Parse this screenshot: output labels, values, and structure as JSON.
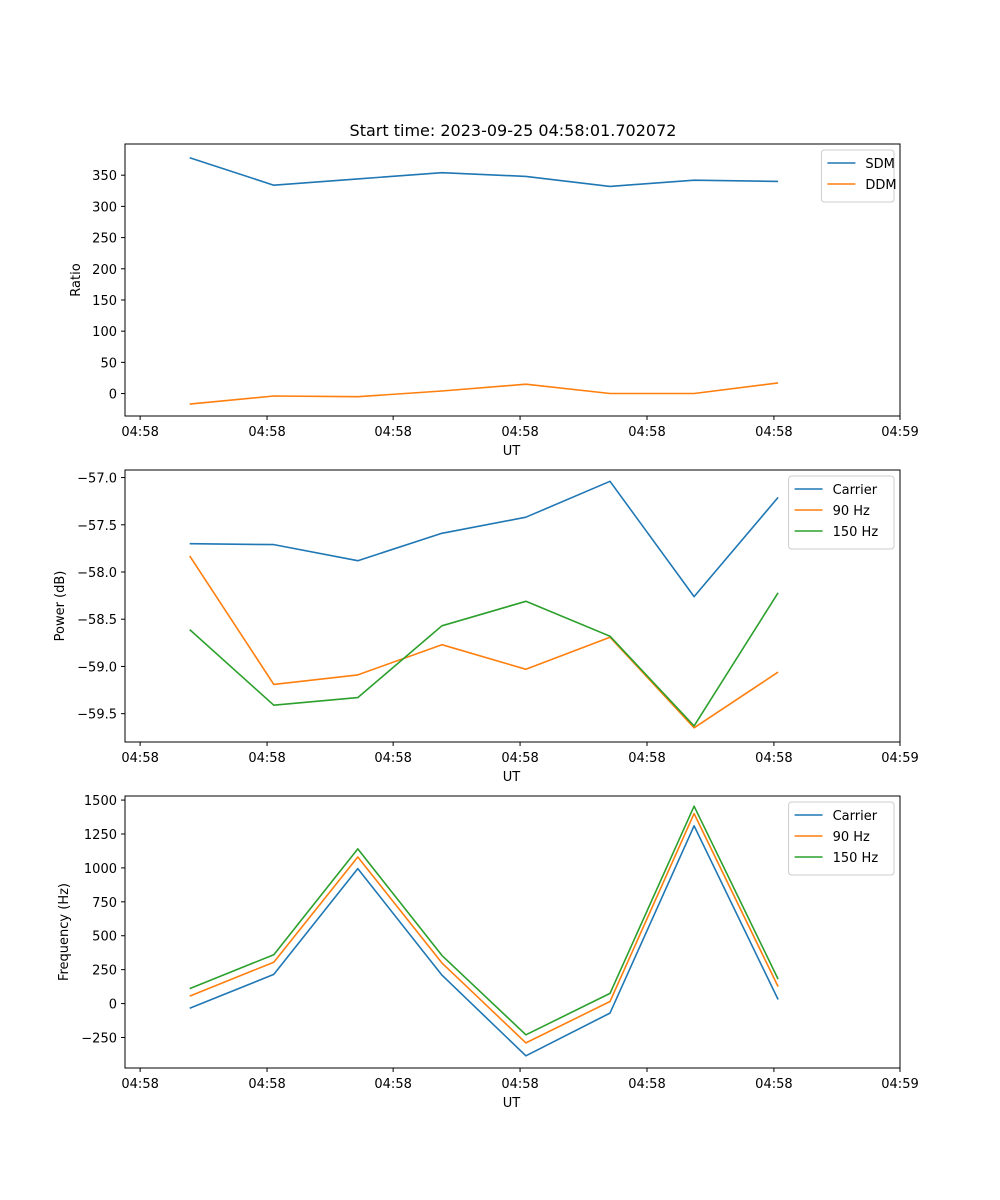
{
  "figure": {
    "title": "Start time: 2023-09-25 04:58:01.702072"
  },
  "colors": {
    "blue": "#1f77b4",
    "orange": "#ff7f0e",
    "green": "#2ca02c"
  },
  "chart_data": [
    {
      "type": "line",
      "title": "Start time: 2023-09-25 04:58:01.702072",
      "xlabel": "UT",
      "ylabel": "Ratio",
      "x": [
        1,
        2,
        3,
        4,
        5,
        6,
        7,
        8
      ],
      "xlim": [
        0.23,
        9.45
      ],
      "x_ticks": [
        0.41,
        1.92,
        3.42,
        4.93,
        6.44,
        7.95,
        9.45
      ],
      "x_tick_labels": [
        "04:58",
        "04:58",
        "04:58",
        "04:58",
        "04:58",
        "04:58",
        "04:59"
      ],
      "ylim": [
        -36,
        400
      ],
      "y_ticks": [
        0,
        50,
        100,
        150,
        200,
        250,
        300,
        350
      ],
      "legend": "top-right",
      "series": [
        {
          "name": "SDM",
          "color": "#1f77b4",
          "values": [
            378,
            334,
            344,
            354,
            348,
            332,
            342,
            340
          ]
        },
        {
          "name": "DDM",
          "color": "#ff7f0e",
          "values": [
            -17,
            -4,
            -5,
            4,
            15,
            0,
            0,
            17
          ]
        }
      ]
    },
    {
      "type": "line",
      "title": "",
      "xlabel": "UT",
      "ylabel": "Power (dB)",
      "x": [
        1,
        2,
        3,
        4,
        5,
        6,
        7,
        8
      ],
      "xlim": [
        0.23,
        9.45
      ],
      "x_ticks": [
        0.41,
        1.92,
        3.42,
        4.93,
        6.44,
        7.95,
        9.45
      ],
      "x_tick_labels": [
        "04:58",
        "04:58",
        "04:58",
        "04:58",
        "04:58",
        "04:58",
        "04:59"
      ],
      "ylim": [
        -59.8,
        -56.92
      ],
      "y_ticks": [
        -59.5,
        -59.0,
        -58.5,
        -58.0,
        -57.5,
        -57.0
      ],
      "y_tick_labels": [
        "−59.5",
        "−59.0",
        "−58.5",
        "−58.0",
        "−57.5",
        "−57.0"
      ],
      "legend": "top-right",
      "series": [
        {
          "name": "Carrier",
          "color": "#1f77b4",
          "values": [
            -57.7,
            -57.71,
            -57.88,
            -57.59,
            -57.42,
            -57.04,
            -58.26,
            -57.21
          ]
        },
        {
          "name": "90 Hz",
          "color": "#ff7f0e",
          "values": [
            -57.83,
            -59.19,
            -59.09,
            -58.77,
            -59.03,
            -58.69,
            -59.65,
            -59.06
          ]
        },
        {
          "name": "150 Hz",
          "color": "#2ca02c",
          "values": [
            -58.61,
            -59.41,
            -59.33,
            -58.57,
            -58.31,
            -58.68,
            -59.63,
            -58.22
          ]
        }
      ]
    },
    {
      "type": "line",
      "title": "",
      "xlabel": "UT",
      "ylabel": "Frequency (Hz)",
      "x": [
        1,
        2,
        3,
        4,
        5,
        6,
        7,
        8
      ],
      "xlim": [
        0.23,
        9.45
      ],
      "x_ticks": [
        0.41,
        1.92,
        3.42,
        4.93,
        6.44,
        7.95,
        9.45
      ],
      "x_tick_labels": [
        "04:58",
        "04:58",
        "04:58",
        "04:58",
        "04:58",
        "04:58",
        "04:59"
      ],
      "ylim": [
        -475,
        1530
      ],
      "y_ticks": [
        -250,
        0,
        250,
        500,
        750,
        1000,
        1250,
        1500
      ],
      "y_tick_labels": [
        "−250",
        "0",
        "250",
        "500",
        "750",
        "1000",
        "1250",
        "1500"
      ],
      "legend": "top-right",
      "series": [
        {
          "name": "Carrier",
          "color": "#1f77b4",
          "values": [
            -35,
            215,
            995,
            210,
            -385,
            -70,
            1310,
            30
          ]
        },
        {
          "name": "90 Hz",
          "color": "#ff7f0e",
          "values": [
            55,
            305,
            1080,
            300,
            -290,
            15,
            1400,
            125
          ]
        },
        {
          "name": "150 Hz",
          "color": "#2ca02c",
          "values": [
            110,
            360,
            1140,
            355,
            -230,
            75,
            1455,
            180
          ]
        }
      ]
    }
  ]
}
